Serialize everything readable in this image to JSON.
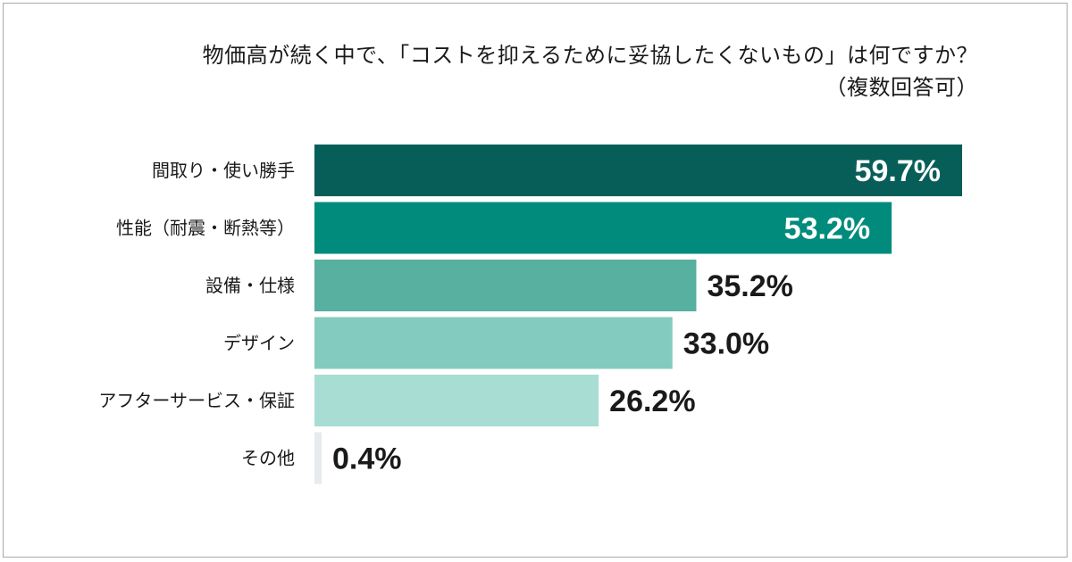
{
  "chart_data": {
    "type": "bar",
    "orientation": "horizontal",
    "title": "物価高が続く中で、「コストを抑えるために妥協したくないもの」は何ですか？",
    "subtitle": "（複数回答可）",
    "categories": [
      "間取り・使い勝手",
      "性能（耐震・断熱等）",
      "設備・仕様",
      "デザイン",
      "アフターサービス・保証",
      "その他"
    ],
    "values": [
      59.7,
      53.2,
      35.2,
      33.0,
      26.2,
      0.4
    ],
    "value_labels": [
      "59.7%",
      "53.2%",
      "35.2%",
      "33.0%",
      "26.2%",
      "0.4%"
    ],
    "unit": "%",
    "xlim": [
      0,
      59.7
    ],
    "grid": false,
    "legend": "none",
    "colors": [
      "#075e58",
      "#008b7c",
      "#58b0a1",
      "#83cbbe",
      "#a8ddd4",
      "#e6ebee"
    ],
    "label_colors": [
      "#ffffff",
      "#ffffff",
      "#1a1a1a",
      "#1a1a1a",
      "#1a1a1a",
      "#1a1a1a"
    ]
  }
}
